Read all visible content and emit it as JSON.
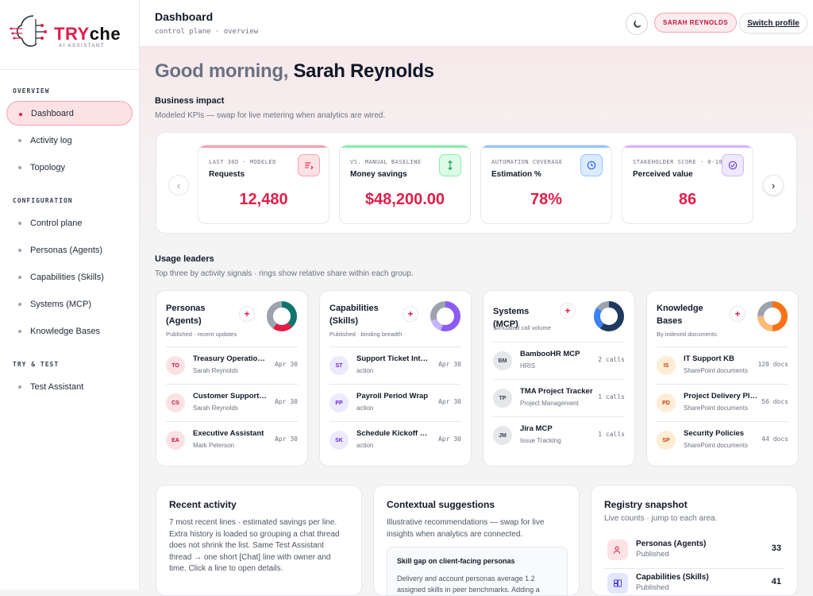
{
  "brand": {
    "name_try": "TRY",
    "name_che": "che",
    "tagline": "AI ASSISTANT"
  },
  "sidebar": {
    "sections": [
      {
        "title": "OVERVIEW",
        "items": [
          {
            "label": "Dashboard",
            "active": true
          },
          {
            "label": "Activity log"
          },
          {
            "label": "Topology"
          }
        ]
      },
      {
        "title": "CONFIGURATION",
        "items": [
          {
            "label": "Control plane"
          },
          {
            "label": "Personas (Agents)"
          },
          {
            "label": "Capabilities (Skills)"
          },
          {
            "label": "Systems (MCP)"
          },
          {
            "label": "Knowledge Bases"
          }
        ]
      },
      {
        "title": "TRY & TEST",
        "items": [
          {
            "label": "Test Assistant"
          }
        ]
      }
    ]
  },
  "header": {
    "title": "Dashboard",
    "subtitle": "control plane · overview",
    "user": "SARAH REYNOLDS",
    "switch_label": "Switch profile",
    "moon_icon": "moon-icon"
  },
  "greeting": {
    "prefix": "Good morning,",
    "name": "Sarah Reynolds"
  },
  "impact": {
    "title": "Business impact",
    "subtitle": "Modeled KPIs — swap for live metering when analytics are wired."
  },
  "kpis": [
    {
      "eyebrow": "LAST 30D · MODELED",
      "label": "Requests",
      "value": "12,480",
      "accent": "#f4a3b0",
      "icon_bg": "#fde2e4",
      "icon_color": "#e11d48",
      "icon": "list-icon"
    },
    {
      "eyebrow": "VS. MANUAL BASELINE",
      "label": "Money savings",
      "value": "$48,200.00",
      "accent": "#86efac",
      "icon_bg": "#dcfce7",
      "icon_color": "#16a34a",
      "icon": "updown-arrows-icon"
    },
    {
      "eyebrow": "AUTOMATION COVERAGE",
      "label": "Estimation %",
      "value": "78%",
      "accent": "#93c5fd",
      "icon_bg": "#dbeafe",
      "icon_color": "#2563eb",
      "icon": "clock-icon"
    },
    {
      "eyebrow": "STAKEHOLDER SCORE · 0-10",
      "label": "Perceived value",
      "value": "86",
      "accent": "#d8b4fe",
      "icon_bg": "#ede9fe",
      "icon_color": "#7c3aed",
      "icon": "check-circle-icon"
    }
  ],
  "usage": {
    "title": "Usage leaders",
    "subtitle": "Top three by activity signals · rings show relative share within each group."
  },
  "leaders": [
    {
      "title": "Personas (Agents)",
      "sub": "Published · recent updates",
      "ring": [
        "#0f766e",
        "#e11d48",
        "#9ca3af"
      ],
      "rows": [
        {
          "initials": "TO",
          "name": "Treasury Operations Agent",
          "sub": "Sarah Reynolds",
          "meta": "Apr 30"
        },
        {
          "initials": "CS",
          "name": "Customer Support Agent",
          "sub": "Sarah Reynolds",
          "meta": "Apr 30"
        },
        {
          "initials": "EA",
          "name": "Executive Assistant",
          "sub": "Mark Peterson",
          "meta": "Apr 30"
        }
      ],
      "av_bg": "#fde2e4",
      "av_color": "#be123c"
    },
    {
      "title": "Capabilities (Skills)",
      "sub": "Published · binding breadth",
      "ring": [
        "#8b5cf6",
        "#c4b5fd",
        "#9ca3af"
      ],
      "rows": [
        {
          "initials": "ST",
          "name": "Support Ticket Intake",
          "sub": "action",
          "meta": "Apr 30"
        },
        {
          "initials": "PP",
          "name": "Payroll Period Wrap",
          "sub": "action",
          "meta": "Apr 30"
        },
        {
          "initials": "SK",
          "name": "Schedule Kickoff Meeting",
          "sub": "action",
          "meta": "Apr 30"
        }
      ],
      "av_bg": "#ede9fe",
      "av_color": "#6d28d9"
    },
    {
      "title": "Systems (MCP)",
      "sub": "Simulated call volume",
      "ring": [
        "#1e3a5f",
        "#3b82f6",
        "#9ca3af"
      ],
      "rows": [
        {
          "initials": "BM",
          "name": "BambooHR MCP",
          "sub": "HRIS",
          "meta": "2 calls"
        },
        {
          "initials": "TP",
          "name": "TMA Project Tracker",
          "sub": "Project Management",
          "meta": "1 calls"
        },
        {
          "initials": "JM",
          "name": "Jira MCP",
          "sub": "Issue Tracking",
          "meta": "1 calls"
        }
      ],
      "av_bg": "#e5e7eb",
      "av_color": "#374151"
    },
    {
      "title": "Knowledge Bases",
      "sub": "By indexed documents",
      "ring": [
        "#f97316",
        "#fdba74",
        "#9ca3af"
      ],
      "rows": [
        {
          "initials": "IS",
          "name": "IT Support KB",
          "sub": "SharePoint documents",
          "meta": "120 docs"
        },
        {
          "initials": "PD",
          "name": "Project Delivery Playbook",
          "sub": "SharePoint documents",
          "meta": "56 docs"
        },
        {
          "initials": "SP",
          "name": "Security Policies",
          "sub": "SharePoint documents",
          "meta": "44 docs"
        }
      ],
      "av_bg": "#ffedd5",
      "av_color": "#c2410c"
    }
  ],
  "recent": {
    "title": "Recent activity",
    "text": "7 most recent lines · estimated savings per line. Extra history is loaded so grouping a chat thread does not shrink the list. Same Test Assistant thread → one short [Chat] line with owner and time. Click a line to open details."
  },
  "suggestions": {
    "title": "Contextual suggestions",
    "text": "Illustrative recommendations — swap for live insights when analytics are connected.",
    "item_title": "Skill gap on client-facing personas",
    "item_text": "Delivery and account personas average 1.2 assigned skills in peer benchmarks. Adding a"
  },
  "registry": {
    "title": "Registry snapshot",
    "subtitle": "Live counts · jump to each area.",
    "items": [
      {
        "name": "Personas (Agents)",
        "sub": "Published",
        "count": "33"
      },
      {
        "name": "Capabilities (Skills)",
        "sub": "Published",
        "count": "41"
      }
    ]
  }
}
